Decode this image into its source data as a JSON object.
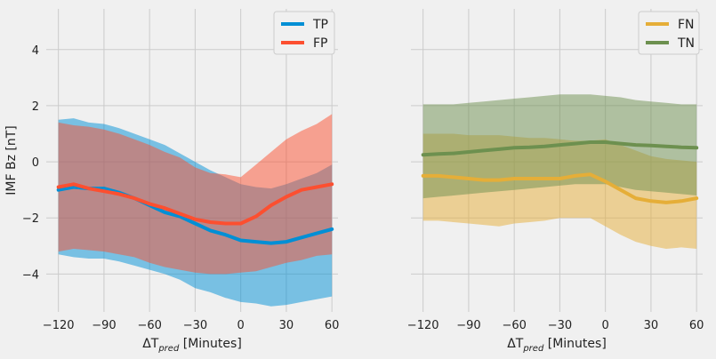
{
  "chart_data": [
    {
      "type": "line",
      "panel": "left",
      "ylabel": "IMF Bz [nT]",
      "xlabel_main": "ΔT",
      "xlabel_sub": "pred",
      "xlabel_tail": " [Minutes]",
      "xlim": [
        -128,
        64
      ],
      "ylim": [
        -5.35,
        5.45
      ],
      "xticks": [
        -120,
        -90,
        -60,
        -30,
        0,
        30,
        60
      ],
      "xtick_labels": [
        "−120",
        "−90",
        "−60",
        "−30",
        "0",
        "30",
        "60"
      ],
      "yticks": [
        -4,
        -2,
        0,
        2,
        4
      ],
      "ytick_labels": [
        "−4",
        "−2",
        "0",
        "2",
        "4"
      ],
      "grid": true,
      "legend_placement": "top-right",
      "series": [
        {
          "name": "TP",
          "color": "#008fd5",
          "x": [
            -120,
            -110,
            -100,
            -90,
            -80,
            -70,
            -60,
            -50,
            -40,
            -30,
            -20,
            -10,
            0,
            10,
            20,
            30,
            40,
            50,
            60
          ],
          "mean": [
            -1.0,
            -0.9,
            -0.95,
            -0.95,
            -1.1,
            -1.3,
            -1.55,
            -1.8,
            -1.95,
            -2.2,
            -2.45,
            -2.6,
            -2.8,
            -2.85,
            -2.9,
            -2.85,
            -2.7,
            -2.55,
            -2.4
          ],
          "lower": [
            -3.3,
            -3.4,
            -3.45,
            -3.45,
            -3.55,
            -3.7,
            -3.85,
            -4.0,
            -4.2,
            -4.5,
            -4.65,
            -4.85,
            -5.0,
            -5.05,
            -5.15,
            -5.1,
            -5.0,
            -4.9,
            -4.8
          ],
          "upper": [
            1.5,
            1.55,
            1.4,
            1.35,
            1.2,
            1.0,
            0.8,
            0.6,
            0.3,
            0.0,
            -0.3,
            -0.55,
            -0.8,
            -0.9,
            -0.95,
            -0.8,
            -0.6,
            -0.4,
            -0.1
          ]
        },
        {
          "name": "FP",
          "color": "#fc4f30",
          "x": [
            -120,
            -110,
            -100,
            -90,
            -80,
            -70,
            -60,
            -50,
            -40,
            -30,
            -20,
            -10,
            0,
            10,
            20,
            30,
            40,
            50,
            60
          ],
          "mean": [
            -0.9,
            -0.8,
            -0.95,
            -1.05,
            -1.15,
            -1.3,
            -1.5,
            -1.65,
            -1.85,
            -2.05,
            -2.15,
            -2.2,
            -2.2,
            -1.95,
            -1.55,
            -1.25,
            -1.0,
            -0.9,
            -0.8
          ],
          "lower": [
            -3.2,
            -3.1,
            -3.15,
            -3.2,
            -3.3,
            -3.4,
            -3.6,
            -3.75,
            -3.85,
            -3.95,
            -4.0,
            -4.0,
            -3.95,
            -3.9,
            -3.75,
            -3.6,
            -3.5,
            -3.35,
            -3.3
          ],
          "upper": [
            1.4,
            1.3,
            1.25,
            1.15,
            1.0,
            0.8,
            0.6,
            0.35,
            0.15,
            -0.2,
            -0.4,
            -0.45,
            -0.55,
            -0.1,
            0.35,
            0.8,
            1.1,
            1.35,
            1.7
          ]
        }
      ]
    },
    {
      "type": "line",
      "panel": "right",
      "ylabel": "",
      "xlabel_main": "ΔT",
      "xlabel_sub": "pred",
      "xlabel_tail": " [Minutes]",
      "xlim": [
        -128,
        64
      ],
      "ylim": [
        -5.35,
        5.45
      ],
      "xticks": [
        -120,
        -90,
        -60,
        -30,
        0,
        30,
        60
      ],
      "xtick_labels": [
        "−120",
        "−90",
        "−60",
        "−30",
        "0",
        "30",
        "60"
      ],
      "grid": true,
      "legend_placement": "top-right",
      "series": [
        {
          "name": "FN",
          "color": "#e5ae38",
          "x": [
            -120,
            -110,
            -100,
            -90,
            -80,
            -70,
            -60,
            -50,
            -40,
            -30,
            -20,
            -10,
            0,
            10,
            20,
            30,
            40,
            50,
            60
          ],
          "mean": [
            -0.5,
            -0.5,
            -0.55,
            -0.6,
            -0.65,
            -0.65,
            -0.6,
            -0.6,
            -0.6,
            -0.6,
            -0.5,
            -0.45,
            -0.7,
            -1.0,
            -1.3,
            -1.4,
            -1.45,
            -1.4,
            -1.3
          ],
          "lower": [
            -2.1,
            -2.1,
            -2.15,
            -2.2,
            -2.25,
            -2.3,
            -2.2,
            -2.15,
            -2.1,
            -2.0,
            -2.0,
            -2.0,
            -2.3,
            -2.6,
            -2.85,
            -3.0,
            -3.1,
            -3.05,
            -3.1
          ],
          "upper": [
            1.0,
            1.0,
            1.0,
            0.95,
            0.95,
            0.95,
            0.9,
            0.85,
            0.85,
            0.8,
            0.75,
            0.75,
            0.8,
            0.6,
            0.4,
            0.2,
            0.1,
            0.05,
            0.0
          ]
        },
        {
          "name": "TN",
          "color": "#6d904f",
          "x": [
            -120,
            -110,
            -100,
            -90,
            -80,
            -70,
            -60,
            -50,
            -40,
            -30,
            -20,
            -10,
            0,
            10,
            20,
            30,
            40,
            50,
            60
          ],
          "mean": [
            0.25,
            0.28,
            0.3,
            0.35,
            0.4,
            0.45,
            0.5,
            0.52,
            0.55,
            0.6,
            0.65,
            0.7,
            0.7,
            0.65,
            0.6,
            0.58,
            0.55,
            0.52,
            0.5
          ],
          "lower": [
            -1.3,
            -1.25,
            -1.2,
            -1.15,
            -1.1,
            -1.05,
            -1.0,
            -0.95,
            -0.9,
            -0.85,
            -0.8,
            -0.8,
            -0.8,
            -0.9,
            -1.0,
            -1.05,
            -1.1,
            -1.15,
            -1.2
          ],
          "upper": [
            2.05,
            2.05,
            2.05,
            2.1,
            2.15,
            2.2,
            2.25,
            2.3,
            2.35,
            2.4,
            2.4,
            2.4,
            2.35,
            2.3,
            2.2,
            2.15,
            2.1,
            2.05,
            2.05
          ]
        }
      ]
    }
  ]
}
